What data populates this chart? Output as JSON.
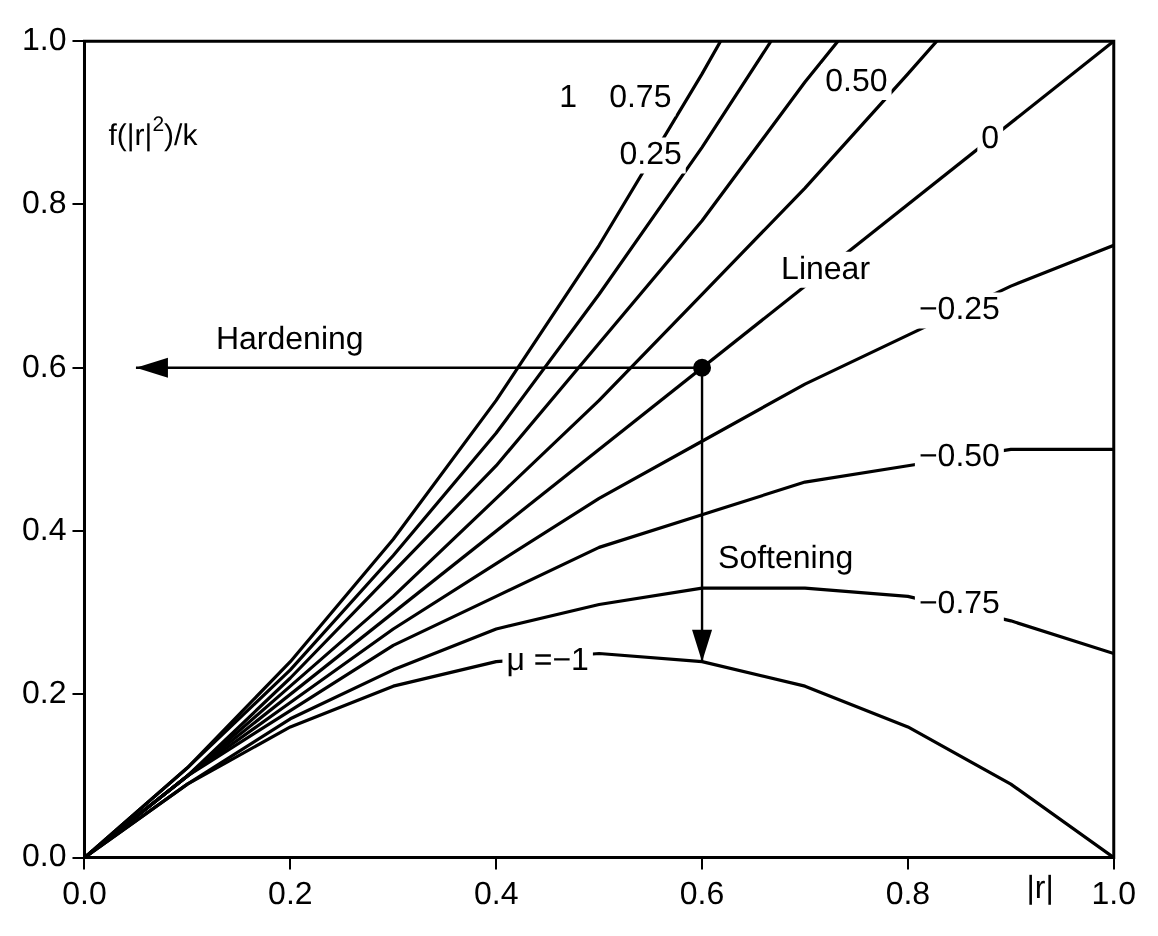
{
  "chart_data": {
    "type": "line",
    "xlabel": "|r|",
    "ylabel": "f(|r|$^{2}$)/k",
    "xlim": [
      0,
      1
    ],
    "ylim": [
      0,
      1
    ],
    "xticks": [
      {
        "value": 0,
        "label": "0.0"
      },
      {
        "value": 0.2,
        "label": "0.2"
      },
      {
        "value": 0.4,
        "label": "0.4"
      },
      {
        "value": 0.6,
        "label": "0.6"
      },
      {
        "value": 0.8,
        "label": "0.8"
      },
      {
        "value": 1,
        "label": "1.0"
      }
    ],
    "yticks": [
      {
        "value": 0,
        "label": "0.0"
      },
      {
        "value": 0.2,
        "label": "0.2"
      },
      {
        "value": 0.4,
        "label": "0.4"
      },
      {
        "value": 0.6,
        "label": "0.6"
      },
      {
        "value": 0.8,
        "label": "0.8"
      },
      {
        "value": 1,
        "label": "1.0"
      }
    ],
    "grid": false,
    "legend": false,
    "marker": "none",
    "line_style": "solid",
    "series": [
      {
        "color": "#000000",
        "x": [
          0,
          0.1,
          0.2,
          0.3,
          0.4,
          0.5,
          0.6,
          0.618
        ],
        "values": [
          0,
          0.11,
          0.24,
          0.39,
          0.56,
          0.75,
          0.96,
          1
        ]
      },
      {
        "color": "#000000",
        "x": [
          0,
          0.1,
          0.2,
          0.3,
          0.4,
          0.5,
          0.6,
          0.667
        ],
        "values": [
          0,
          0.11,
          0.23,
          0.37,
          0.52,
          0.69,
          0.87,
          1
        ]
      },
      {
        "color": "#000000",
        "x": [
          0,
          0.1,
          0.2,
          0.3,
          0.4,
          0.5,
          0.6,
          0.7,
          0.732
        ],
        "values": [
          0,
          0.1,
          0.22,
          0.35,
          0.48,
          0.63,
          0.78,
          0.95,
          1
        ]
      },
      {
        "color": "#000000",
        "x": [
          0,
          0.1,
          0.2,
          0.3,
          0.4,
          0.5,
          0.6,
          0.7,
          0.8,
          0.828
        ],
        "values": [
          0,
          0.1,
          0.21,
          0.32,
          0.44,
          0.56,
          0.69,
          0.82,
          0.96,
          1
        ]
      },
      {
        "color": "#000000",
        "x": [
          0,
          1
        ],
        "values": [
          0,
          1
        ]
      },
      {
        "color": "#000000",
        "x": [
          0,
          0.1,
          0.2,
          0.3,
          0.4,
          0.5,
          0.6,
          0.7,
          0.8,
          0.9,
          1
        ],
        "values": [
          0,
          0.1,
          0.19,
          0.28,
          0.36,
          0.44,
          0.51,
          0.58,
          0.64,
          0.7,
          0.75
        ]
      },
      {
        "color": "#000000",
        "x": [
          0,
          0.1,
          0.2,
          0.3,
          0.4,
          0.5,
          0.6,
          0.7,
          0.8,
          0.9,
          1
        ],
        "values": [
          0,
          0.1,
          0.18,
          0.26,
          0.32,
          0.38,
          0.42,
          0.46,
          0.48,
          0.5,
          0.5
        ]
      },
      {
        "color": "#000000",
        "x": [
          0,
          0.1,
          0.2,
          0.3,
          0.4,
          0.5,
          0.6,
          0.7,
          0.8,
          0.9,
          1
        ],
        "values": [
          0,
          0.09,
          0.17,
          0.23,
          0.28,
          0.31,
          0.33,
          0.33,
          0.32,
          0.29,
          0.25
        ]
      },
      {
        "color": "#000000",
        "x": [
          0,
          0.1,
          0.2,
          0.3,
          0.4,
          0.5,
          0.6,
          0.7,
          0.8,
          0.9,
          1
        ],
        "values": [
          0,
          0.09,
          0.16,
          0.21,
          0.24,
          0.25,
          0.24,
          0.21,
          0.16,
          0.09,
          0
        ]
      },
      {
        "type": "scatter",
        "marker": "circle",
        "color": "#000000",
        "x": [
          0.6
        ],
        "values": [
          0.6
        ]
      }
    ],
    "annotations": [
      {
        "text": "1",
        "x": 0.47,
        "y": 0.93
      },
      {
        "text": "0.75",
        "x": 0.54,
        "y": 0.93
      },
      {
        "text": "0.25",
        "x": 0.55,
        "y": 0.86
      },
      {
        "text": "0.50",
        "x": 0.75,
        "y": 0.95
      },
      {
        "text": "0",
        "x": 0.88,
        "y": 0.88
      },
      {
        "text": "Linear",
        "x": 0.72,
        "y": 0.72
      },
      {
        "text": "−0.25",
        "x": 0.85,
        "y": 0.67
      },
      {
        "text": "−0.50",
        "x": 0.85,
        "y": 0.49
      },
      {
        "text": "−0.75",
        "x": 0.85,
        "y": 0.31
      },
      {
        "text": "μ =−1",
        "x": 0.45,
        "y": 0.24
      },
      "Hardening",
      "Softening"
    ]
  }
}
